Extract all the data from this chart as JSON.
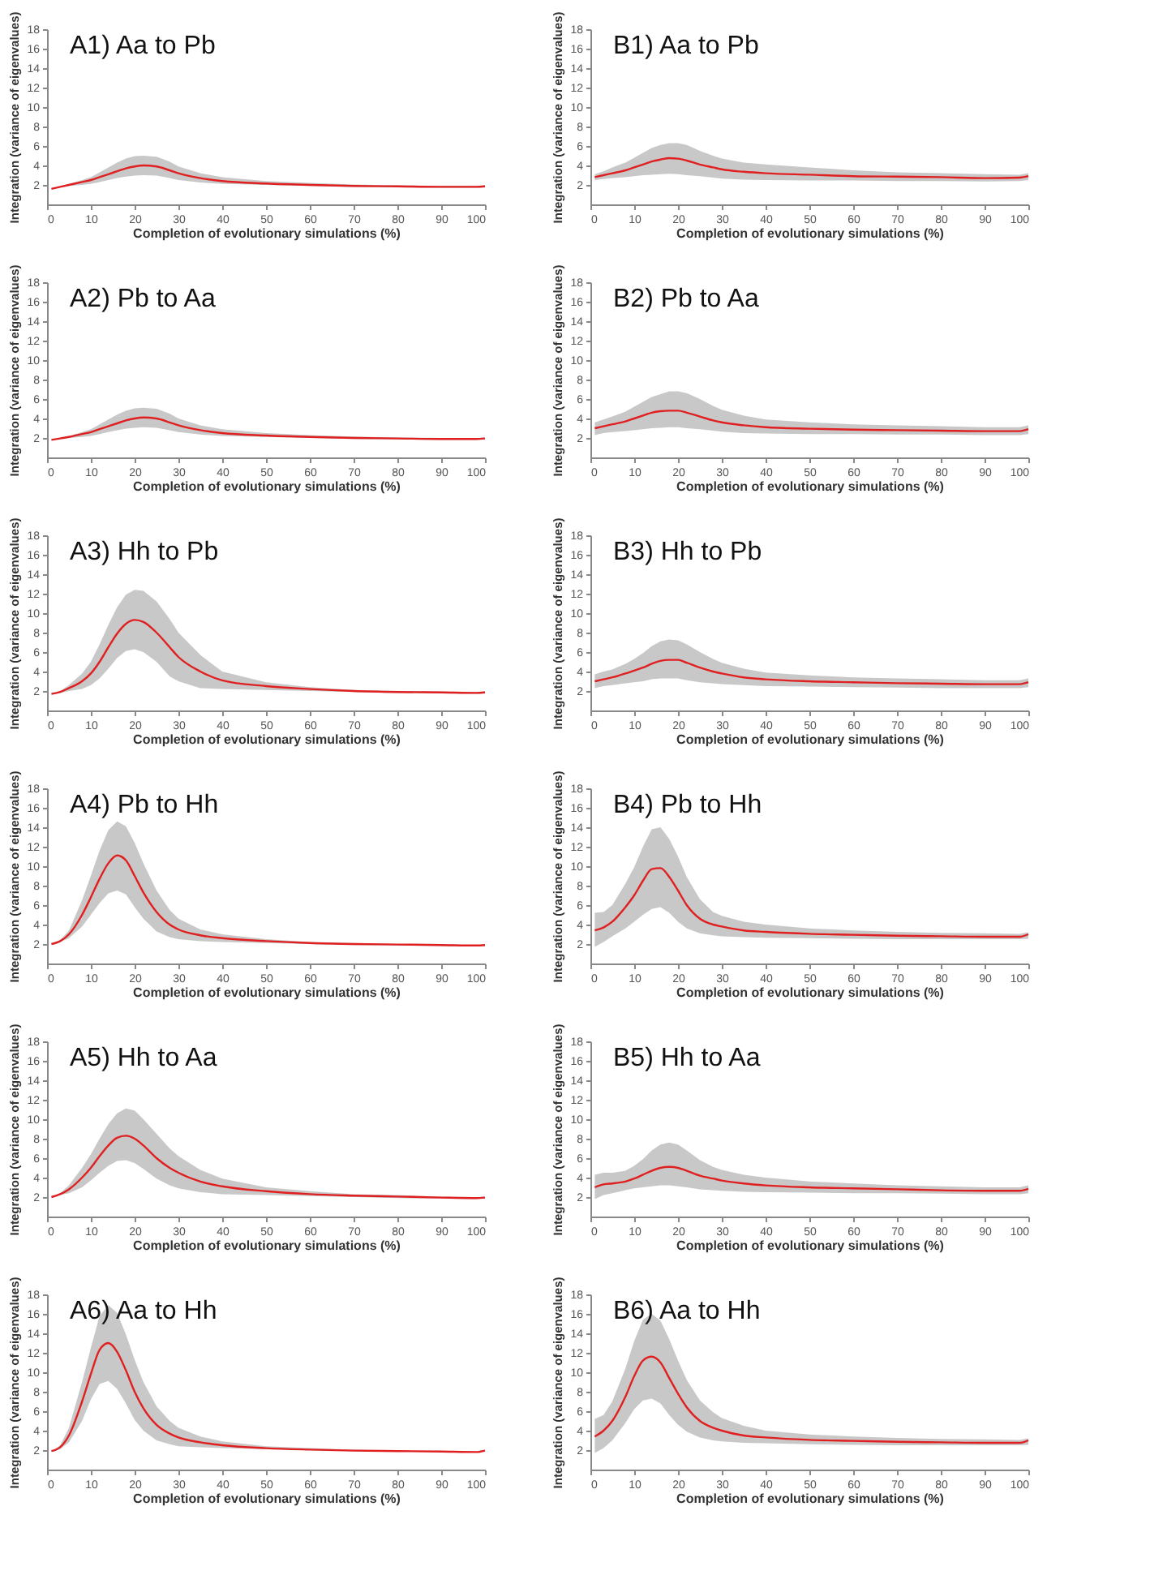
{
  "chart_data": [
    {
      "type": "line",
      "title": "A1) Aa to Pb",
      "xlabel": "Completion of evolutionary simulations (%)",
      "ylabel": "Integration (variance of eigenvalues)",
      "xlim": [
        0,
        100
      ],
      "ylim": [
        0,
        18
      ],
      "xticks": [
        0,
        10,
        20,
        30,
        40,
        50,
        60,
        70,
        80,
        90,
        100
      ],
      "yticks": [
        2,
        4,
        6,
        8,
        10,
        12,
        14,
        16,
        18
      ],
      "grid": false,
      "x": [
        1,
        3,
        5,
        8,
        10,
        12,
        14,
        16,
        18,
        20,
        22,
        25,
        28,
        30,
        35,
        40,
        50,
        60,
        70,
        80,
        90,
        98,
        100
      ],
      "series": [
        {
          "color": "#e02020",
          "values": [
            1.6,
            1.8,
            2.0,
            2.3,
            2.5,
            2.8,
            3.1,
            3.4,
            3.7,
            3.9,
            4.0,
            3.9,
            3.5,
            3.2,
            2.7,
            2.4,
            2.15,
            2.0,
            1.9,
            1.85,
            1.8,
            1.8,
            1.85
          ],
          "lower": [
            1.6,
            1.75,
            1.9,
            2.0,
            2.1,
            2.3,
            2.5,
            2.7,
            2.85,
            2.95,
            3.0,
            2.95,
            2.7,
            2.5,
            2.25,
            2.1,
            2.0,
            1.9,
            1.8,
            1.75,
            1.7,
            1.7,
            1.75
          ],
          "upper": [
            1.6,
            1.85,
            2.1,
            2.5,
            2.8,
            3.3,
            3.8,
            4.3,
            4.7,
            4.95,
            5.0,
            4.9,
            4.4,
            3.9,
            3.2,
            2.8,
            2.4,
            2.2,
            2.05,
            1.95,
            1.9,
            1.9,
            1.95
          ]
        }
      ]
    },
    {
      "type": "line",
      "title": "B1) Aa to Pb",
      "xlabel": "Completion of evolutionary simulations (%)",
      "ylabel": "Integration (variance of eigenvalues)",
      "xlim": [
        0,
        100
      ],
      "ylim": [
        0,
        18
      ],
      "xticks": [
        0,
        10,
        20,
        30,
        40,
        50,
        60,
        70,
        80,
        90,
        100
      ],
      "yticks": [
        2,
        4,
        6,
        8,
        10,
        12,
        14,
        16,
        18
      ],
      "grid": false,
      "x": [
        1,
        3,
        5,
        8,
        10,
        12,
        14,
        16,
        18,
        20,
        22,
        25,
        28,
        30,
        35,
        40,
        50,
        60,
        70,
        80,
        90,
        98,
        100
      ],
      "series": [
        {
          "color": "#e02020",
          "values": [
            2.8,
            3.0,
            3.2,
            3.5,
            3.8,
            4.1,
            4.4,
            4.6,
            4.75,
            4.7,
            4.5,
            4.1,
            3.8,
            3.6,
            3.35,
            3.2,
            3.05,
            2.9,
            2.85,
            2.8,
            2.7,
            2.75,
            2.9
          ],
          "lower": [
            2.5,
            2.6,
            2.7,
            2.8,
            2.9,
            3.0,
            3.05,
            3.1,
            3.15,
            3.1,
            3.0,
            2.9,
            2.75,
            2.65,
            2.55,
            2.5,
            2.45,
            2.45,
            2.4,
            2.4,
            2.35,
            2.4,
            2.5
          ],
          "upper": [
            3.1,
            3.4,
            3.8,
            4.3,
            4.8,
            5.3,
            5.8,
            6.1,
            6.3,
            6.3,
            6.1,
            5.5,
            5.0,
            4.7,
            4.3,
            4.1,
            3.8,
            3.5,
            3.3,
            3.2,
            3.1,
            3.05,
            3.2
          ]
        }
      ]
    },
    {
      "type": "line",
      "title": "A2) Pb to Aa",
      "xlabel": "Completion of evolutionary simulations (%)",
      "ylabel": "Integration (variance of eigenvalues)",
      "xlim": [
        0,
        100
      ],
      "ylim": [
        0,
        18
      ],
      "xticks": [
        0,
        10,
        20,
        30,
        40,
        50,
        60,
        70,
        80,
        90,
        100
      ],
      "yticks": [
        2,
        4,
        6,
        8,
        10,
        12,
        14,
        16,
        18
      ],
      "grid": false,
      "x": [
        1,
        3,
        5,
        8,
        10,
        12,
        14,
        16,
        18,
        20,
        22,
        25,
        28,
        30,
        35,
        40,
        50,
        60,
        70,
        80,
        90,
        98,
        100
      ],
      "series": [
        {
          "color": "#e02020",
          "values": [
            1.8,
            1.95,
            2.1,
            2.4,
            2.6,
            2.9,
            3.2,
            3.5,
            3.8,
            4.0,
            4.1,
            4.0,
            3.6,
            3.3,
            2.8,
            2.5,
            2.25,
            2.1,
            2.0,
            1.95,
            1.9,
            1.9,
            1.95
          ],
          "lower": [
            1.8,
            1.9,
            2.0,
            2.1,
            2.2,
            2.4,
            2.6,
            2.8,
            2.95,
            3.05,
            3.1,
            3.05,
            2.8,
            2.6,
            2.35,
            2.2,
            2.1,
            2.0,
            1.9,
            1.85,
            1.8,
            1.8,
            1.85
          ],
          "upper": [
            1.8,
            2.0,
            2.2,
            2.6,
            2.9,
            3.4,
            3.9,
            4.4,
            4.8,
            5.05,
            5.1,
            5.0,
            4.5,
            4.0,
            3.3,
            2.9,
            2.5,
            2.3,
            2.15,
            2.05,
            2.0,
            2.0,
            2.05
          ]
        }
      ]
    },
    {
      "type": "line",
      "title": "B2) Pb to Aa",
      "xlabel": "Completion of evolutionary simulations (%)",
      "ylabel": "Integration (variance of eigenvalues)",
      "xlim": [
        0,
        100
      ],
      "ylim": [
        0,
        18
      ],
      "xticks": [
        0,
        10,
        20,
        30,
        40,
        50,
        60,
        70,
        80,
        90,
        100
      ],
      "yticks": [
        2,
        4,
        6,
        8,
        10,
        12,
        14,
        16,
        18
      ],
      "grid": false,
      "x": [
        1,
        3,
        5,
        8,
        10,
        12,
        14,
        16,
        18,
        20,
        22,
        25,
        28,
        30,
        35,
        40,
        50,
        60,
        70,
        80,
        90,
        98,
        100
      ],
      "series": [
        {
          "color": "#e02020",
          "values": [
            3.0,
            3.2,
            3.4,
            3.7,
            4.0,
            4.3,
            4.6,
            4.75,
            4.8,
            4.8,
            4.6,
            4.2,
            3.8,
            3.6,
            3.3,
            3.1,
            2.95,
            2.85,
            2.8,
            2.75,
            2.7,
            2.7,
            2.9
          ],
          "lower": [
            2.3,
            2.5,
            2.6,
            2.7,
            2.8,
            2.9,
            3.0,
            3.05,
            3.1,
            3.1,
            3.0,
            2.9,
            2.75,
            2.65,
            2.5,
            2.45,
            2.4,
            2.4,
            2.35,
            2.35,
            2.3,
            2.3,
            2.4
          ],
          "upper": [
            3.6,
            3.9,
            4.2,
            4.7,
            5.2,
            5.7,
            6.2,
            6.5,
            6.8,
            6.8,
            6.6,
            6.0,
            5.3,
            4.9,
            4.3,
            3.9,
            3.6,
            3.4,
            3.3,
            3.2,
            3.1,
            3.1,
            3.3
          ]
        }
      ]
    },
    {
      "type": "line",
      "title": "A3) Hh to Pb",
      "xlabel": "Completion of evolutionary simulations (%)",
      "ylabel": "Integration (variance of eigenvalues)",
      "xlim": [
        0,
        100
      ],
      "ylim": [
        0,
        18
      ],
      "xticks": [
        0,
        10,
        20,
        30,
        40,
        50,
        60,
        70,
        80,
        90,
        100
      ],
      "yticks": [
        2,
        4,
        6,
        8,
        10,
        12,
        14,
        16,
        18
      ],
      "grid": false,
      "x": [
        1,
        3,
        5,
        8,
        10,
        12,
        14,
        16,
        18,
        20,
        22,
        25,
        28,
        30,
        35,
        40,
        50,
        60,
        70,
        80,
        90,
        98,
        100
      ],
      "series": [
        {
          "color": "#e02020",
          "values": [
            1.7,
            1.9,
            2.3,
            3.0,
            3.8,
            5.0,
            6.5,
            7.9,
            8.9,
            9.3,
            9.1,
            8.0,
            6.5,
            5.5,
            4.0,
            3.1,
            2.5,
            2.2,
            2.0,
            1.9,
            1.85,
            1.8,
            1.85
          ],
          "lower": [
            1.7,
            1.8,
            2.0,
            2.2,
            2.6,
            3.3,
            4.3,
            5.4,
            6.1,
            6.3,
            6.0,
            5.0,
            3.5,
            3.0,
            2.3,
            2.2,
            2.1,
            2.0,
            1.9,
            1.8,
            1.75,
            1.7,
            1.75
          ],
          "upper": [
            1.7,
            2.0,
            2.6,
            3.8,
            5.0,
            6.8,
            8.8,
            10.6,
            11.9,
            12.4,
            12.3,
            11.2,
            9.4,
            8.0,
            5.7,
            4.0,
            2.9,
            2.4,
            2.1,
            2.0,
            1.95,
            1.9,
            1.95
          ]
        }
      ]
    },
    {
      "type": "line",
      "title": "B3) Hh to Pb",
      "xlabel": "Completion of evolutionary simulations (%)",
      "ylabel": "Integration (variance of eigenvalues)",
      "xlim": [
        0,
        100
      ],
      "ylim": [
        0,
        18
      ],
      "xticks": [
        0,
        10,
        20,
        30,
        40,
        50,
        60,
        70,
        80,
        90,
        100
      ],
      "yticks": [
        2,
        4,
        6,
        8,
        10,
        12,
        14,
        16,
        18
      ],
      "grid": false,
      "x": [
        1,
        3,
        5,
        8,
        10,
        12,
        14,
        16,
        18,
        20,
        22,
        25,
        28,
        30,
        35,
        40,
        50,
        60,
        70,
        80,
        90,
        98,
        100
      ],
      "series": [
        {
          "color": "#e02020",
          "values": [
            3.0,
            3.2,
            3.4,
            3.8,
            4.1,
            4.4,
            4.8,
            5.1,
            5.2,
            5.2,
            4.9,
            4.4,
            4.0,
            3.8,
            3.4,
            3.2,
            3.0,
            2.9,
            2.8,
            2.75,
            2.7,
            2.7,
            2.9
          ],
          "lower": [
            2.3,
            2.5,
            2.6,
            2.8,
            2.9,
            3.0,
            3.2,
            3.3,
            3.3,
            3.3,
            3.1,
            2.9,
            2.8,
            2.7,
            2.6,
            2.5,
            2.45,
            2.4,
            2.35,
            2.3,
            2.3,
            2.3,
            2.4
          ],
          "upper": [
            3.7,
            4.0,
            4.2,
            4.8,
            5.3,
            5.9,
            6.6,
            7.1,
            7.3,
            7.2,
            6.8,
            6.0,
            5.3,
            4.9,
            4.3,
            3.9,
            3.6,
            3.4,
            3.3,
            3.2,
            3.1,
            3.1,
            3.3
          ]
        }
      ]
    },
    {
      "type": "line",
      "title": "A4) Pb to Hh",
      "xlabel": "Completion of evolutionary simulations (%)",
      "ylabel": "Integration (variance of eigenvalues)",
      "xlim": [
        0,
        100
      ],
      "ylim": [
        0,
        18
      ],
      "xticks": [
        0,
        10,
        20,
        30,
        40,
        50,
        60,
        70,
        80,
        90,
        100
      ],
      "yticks": [
        2,
        4,
        6,
        8,
        10,
        12,
        14,
        16,
        18
      ],
      "grid": false,
      "x": [
        1,
        3,
        5,
        8,
        10,
        12,
        14,
        16,
        18,
        20,
        22,
        25,
        28,
        30,
        35,
        40,
        50,
        60,
        70,
        80,
        90,
        98,
        100
      ],
      "series": [
        {
          "color": "#e02020",
          "values": [
            2.0,
            2.3,
            3.0,
            5.0,
            6.8,
            8.7,
            10.3,
            11.1,
            10.6,
            9.0,
            7.3,
            5.3,
            4.0,
            3.5,
            2.9,
            2.6,
            2.3,
            2.1,
            2.0,
            1.95,
            1.9,
            1.85,
            1.9
          ],
          "lower": [
            2.0,
            2.2,
            2.6,
            3.8,
            5.0,
            6.2,
            7.2,
            7.5,
            7.1,
            5.8,
            4.6,
            3.3,
            2.7,
            2.5,
            2.3,
            2.2,
            2.1,
            2.0,
            1.9,
            1.85,
            1.8,
            1.75,
            1.8
          ],
          "upper": [
            2.0,
            2.4,
            3.4,
            6.5,
            9.0,
            11.6,
            13.7,
            14.6,
            14.1,
            12.4,
            10.3,
            7.5,
            5.5,
            4.6,
            3.5,
            3.0,
            2.5,
            2.2,
            2.1,
            2.0,
            1.95,
            1.9,
            1.95
          ]
        }
      ]
    },
    {
      "type": "line",
      "title": "B4) Pb to Hh",
      "xlabel": "Completion of evolutionary simulations (%)",
      "ylabel": "Integration (variance of eigenvalues)",
      "xlim": [
        0,
        100
      ],
      "ylim": [
        0,
        18
      ],
      "xticks": [
        0,
        10,
        20,
        30,
        40,
        50,
        60,
        70,
        80,
        90,
        100
      ],
      "yticks": [
        2,
        4,
        6,
        8,
        10,
        12,
        14,
        16,
        18
      ],
      "grid": false,
      "x": [
        1,
        3,
        5,
        8,
        10,
        12,
        14,
        16,
        18,
        20,
        22,
        25,
        28,
        30,
        35,
        40,
        50,
        60,
        70,
        80,
        90,
        98,
        100
      ],
      "series": [
        {
          "color": "#e02020",
          "values": [
            3.4,
            3.7,
            4.3,
            5.8,
            7.0,
            8.5,
            9.7,
            9.8,
            8.9,
            7.5,
            6.0,
            4.6,
            4.0,
            3.8,
            3.4,
            3.25,
            3.05,
            2.95,
            2.85,
            2.8,
            2.75,
            2.75,
            3.0
          ],
          "lower": [
            1.7,
            2.2,
            2.8,
            3.6,
            4.3,
            5.0,
            5.6,
            5.8,
            5.2,
            4.3,
            3.6,
            3.1,
            2.9,
            2.8,
            2.7,
            2.65,
            2.6,
            2.55,
            2.5,
            2.5,
            2.5,
            2.5,
            2.55
          ],
          "upper": [
            5.2,
            5.3,
            6.0,
            8.2,
            9.9,
            12.0,
            13.8,
            14.0,
            12.8,
            11.0,
            8.9,
            6.6,
            5.3,
            4.9,
            4.3,
            4.0,
            3.6,
            3.4,
            3.25,
            3.15,
            3.1,
            3.05,
            3.2
          ]
        }
      ]
    },
    {
      "type": "line",
      "title": "A5) Hh to Aa",
      "xlabel": "Completion of evolutionary simulations (%)",
      "ylabel": "Integration (variance of eigenvalues)",
      "xlim": [
        0,
        100
      ],
      "ylim": [
        0,
        18
      ],
      "xticks": [
        0,
        10,
        20,
        30,
        40,
        50,
        60,
        70,
        80,
        90,
        100
      ],
      "yticks": [
        2,
        4,
        6,
        8,
        10,
        12,
        14,
        16,
        18
      ],
      "grid": false,
      "x": [
        1,
        3,
        5,
        8,
        10,
        12,
        14,
        16,
        18,
        20,
        22,
        25,
        28,
        30,
        35,
        40,
        50,
        60,
        70,
        80,
        90,
        98,
        100
      ],
      "series": [
        {
          "color": "#e02020",
          "values": [
            2.0,
            2.3,
            2.8,
            4.0,
            5.0,
            6.2,
            7.3,
            8.1,
            8.3,
            8.0,
            7.3,
            6.0,
            5.0,
            4.5,
            3.6,
            3.1,
            2.6,
            2.3,
            2.15,
            2.05,
            1.95,
            1.9,
            1.95
          ],
          "lower": [
            2.0,
            2.2,
            2.4,
            3.0,
            3.7,
            4.5,
            5.2,
            5.7,
            5.8,
            5.5,
            4.9,
            3.9,
            3.2,
            2.9,
            2.5,
            2.3,
            2.2,
            2.1,
            2.0,
            1.9,
            1.85,
            1.8,
            1.85
          ],
          "upper": [
            2.0,
            2.4,
            3.2,
            5.0,
            6.4,
            8.0,
            9.5,
            10.6,
            11.1,
            10.9,
            10.0,
            8.5,
            7.0,
            6.2,
            4.8,
            3.9,
            3.0,
            2.6,
            2.3,
            2.2,
            2.05,
            2.0,
            2.05
          ]
        }
      ]
    },
    {
      "type": "line",
      "title": "B5) Hh to Aa",
      "xlabel": "Completion of evolutionary simulations (%)",
      "ylabel": "Integration (variance of eigenvalues)",
      "xlim": [
        0,
        100
      ],
      "ylim": [
        0,
        18
      ],
      "xticks": [
        0,
        10,
        20,
        30,
        40,
        50,
        60,
        70,
        80,
        90,
        100
      ],
      "yticks": [
        2,
        4,
        6,
        8,
        10,
        12,
        14,
        16,
        18
      ],
      "grid": false,
      "x": [
        1,
        3,
        5,
        8,
        10,
        12,
        14,
        16,
        18,
        20,
        22,
        25,
        28,
        30,
        35,
        40,
        50,
        60,
        70,
        80,
        90,
        98,
        100
      ],
      "series": [
        {
          "color": "#e02020",
          "values": [
            3.0,
            3.3,
            3.4,
            3.6,
            3.9,
            4.3,
            4.7,
            5.0,
            5.1,
            5.0,
            4.7,
            4.2,
            3.9,
            3.7,
            3.4,
            3.2,
            3.0,
            2.9,
            2.8,
            2.7,
            2.65,
            2.65,
            2.85
          ],
          "lower": [
            1.8,
            2.2,
            2.4,
            2.7,
            2.9,
            3.0,
            3.1,
            3.2,
            3.2,
            3.1,
            3.0,
            2.8,
            2.7,
            2.65,
            2.55,
            2.5,
            2.45,
            2.4,
            2.4,
            2.35,
            2.3,
            2.3,
            2.4
          ],
          "upper": [
            4.3,
            4.5,
            4.5,
            4.7,
            5.2,
            5.9,
            6.8,
            7.4,
            7.6,
            7.4,
            6.8,
            5.8,
            5.1,
            4.8,
            4.3,
            4.0,
            3.6,
            3.4,
            3.2,
            3.1,
            3.0,
            3.0,
            3.2
          ]
        }
      ]
    },
    {
      "type": "line",
      "title": "A6) Aa to Hh",
      "xlabel": "Completion of evolutionary simulations (%)",
      "ylabel": "Integration (variance of eigenvalues)",
      "xlim": [
        0,
        100
      ],
      "ylim": [
        0,
        18
      ],
      "xticks": [
        0,
        10,
        20,
        30,
        40,
        50,
        60,
        70,
        80,
        90,
        100
      ],
      "yticks": [
        2,
        4,
        6,
        8,
        10,
        12,
        14,
        16,
        18
      ],
      "grid": false,
      "x": [
        1,
        3,
        5,
        8,
        10,
        12,
        14,
        16,
        18,
        20,
        22,
        25,
        28,
        30,
        35,
        40,
        50,
        60,
        70,
        80,
        90,
        98,
        100
      ],
      "series": [
        {
          "color": "#e02020",
          "values": [
            1.9,
            2.3,
            3.5,
            7.0,
            9.8,
            12.3,
            13.0,
            12.1,
            10.2,
            8.0,
            6.3,
            4.6,
            3.7,
            3.3,
            2.8,
            2.5,
            2.2,
            2.05,
            1.95,
            1.9,
            1.85,
            1.8,
            1.95
          ],
          "lower": [
            1.9,
            2.1,
            2.8,
            5.0,
            7.2,
            8.8,
            9.1,
            8.3,
            6.8,
            5.1,
            4.0,
            3.0,
            2.6,
            2.4,
            2.3,
            2.2,
            2.1,
            2.0,
            1.9,
            1.85,
            1.8,
            1.75,
            1.85
          ],
          "upper": [
            1.9,
            2.5,
            4.3,
            9.0,
            12.5,
            15.8,
            16.9,
            16.1,
            13.9,
            11.3,
            9.0,
            6.5,
            5.0,
            4.3,
            3.4,
            2.9,
            2.4,
            2.2,
            2.05,
            1.95,
            1.9,
            1.85,
            2.05
          ]
        }
      ]
    },
    {
      "type": "line",
      "title": "B6) Aa to Hh",
      "xlabel": "Completion of evolutionary simulations (%)",
      "ylabel": "Integration (variance of eigenvalues)",
      "xlim": [
        0,
        100
      ],
      "ylim": [
        0,
        18
      ],
      "xticks": [
        0,
        10,
        20,
        30,
        40,
        50,
        60,
        70,
        80,
        90,
        100
      ],
      "yticks": [
        2,
        4,
        6,
        8,
        10,
        12,
        14,
        16,
        18
      ],
      "grid": false,
      "x": [
        1,
        3,
        5,
        8,
        10,
        12,
        14,
        16,
        18,
        20,
        22,
        25,
        28,
        30,
        35,
        40,
        50,
        60,
        70,
        80,
        90,
        98,
        100
      ],
      "series": [
        {
          "color": "#e02020",
          "values": [
            3.4,
            4.0,
            5.0,
            7.5,
            9.6,
            11.2,
            11.6,
            11.0,
            9.4,
            7.8,
            6.4,
            5.0,
            4.3,
            4.0,
            3.5,
            3.3,
            3.05,
            2.95,
            2.85,
            2.8,
            2.75,
            2.75,
            3.0
          ],
          "lower": [
            1.7,
            2.2,
            3.0,
            4.8,
            6.2,
            7.1,
            7.3,
            6.8,
            5.6,
            4.6,
            3.9,
            3.3,
            3.0,
            2.9,
            2.75,
            2.7,
            2.6,
            2.55,
            2.5,
            2.5,
            2.5,
            2.5,
            2.55
          ],
          "upper": [
            5.2,
            5.6,
            7.0,
            10.4,
            13.2,
            15.4,
            16.0,
            15.3,
            13.4,
            11.2,
            9.2,
            7.1,
            5.9,
            5.3,
            4.5,
            4.0,
            3.6,
            3.4,
            3.25,
            3.15,
            3.1,
            3.05,
            3.2
          ]
        }
      ]
    }
  ]
}
